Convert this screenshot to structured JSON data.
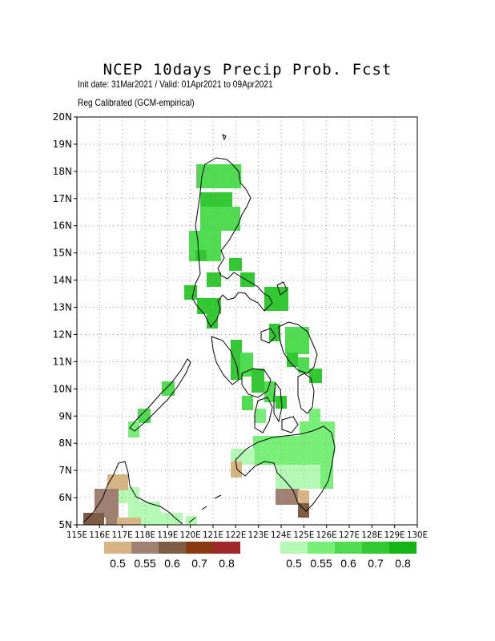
{
  "title": "NCEP 10days Precip Prob. Fcst",
  "subtitle1": "Init date: 31Mar2021 / Valid: 01Apr2021 to 09Apr2021",
  "subtitle2": "Reg Calibrated (GCM-empirical)",
  "lat_labels": [
    "5N",
    "6N",
    "7N",
    "8N",
    "9N",
    "10N",
    "11N",
    "12N",
    "13N",
    "14N",
    "15N",
    "16N",
    "17N",
    "18N",
    "19N",
    "20N"
  ],
  "lon_labels": [
    "115E",
    "116E",
    "117E",
    "118E",
    "119E",
    "120E",
    "121E",
    "122E",
    "123E",
    "124E",
    "125E",
    "126E",
    "127E",
    "128E",
    "129E",
    "130E"
  ],
  "dry_legend": {
    "colors": [
      "#d8b482",
      "#a08070",
      "#7e5c44",
      "#8a3a10",
      "#a02828"
    ],
    "labels": [
      "0.5",
      "0.55",
      "0.6",
      "0.7",
      "0.8"
    ]
  },
  "wet_legend": {
    "colors": [
      "#b4fab4",
      "#78f078",
      "#50dc50",
      "#32c832",
      "#14b414"
    ],
    "labels": [
      "0.5",
      "0.55",
      "0.6",
      "0.7",
      "0.8"
    ]
  },
  "colors": {
    "w1": "#b4fab4",
    "w2": "#78f078",
    "w3": "#50dc50",
    "w4": "#32c832",
    "w5": "#14b414",
    "d1": "#d8b482",
    "d2": "#a08070",
    "d3": "#7e5c44"
  }
}
